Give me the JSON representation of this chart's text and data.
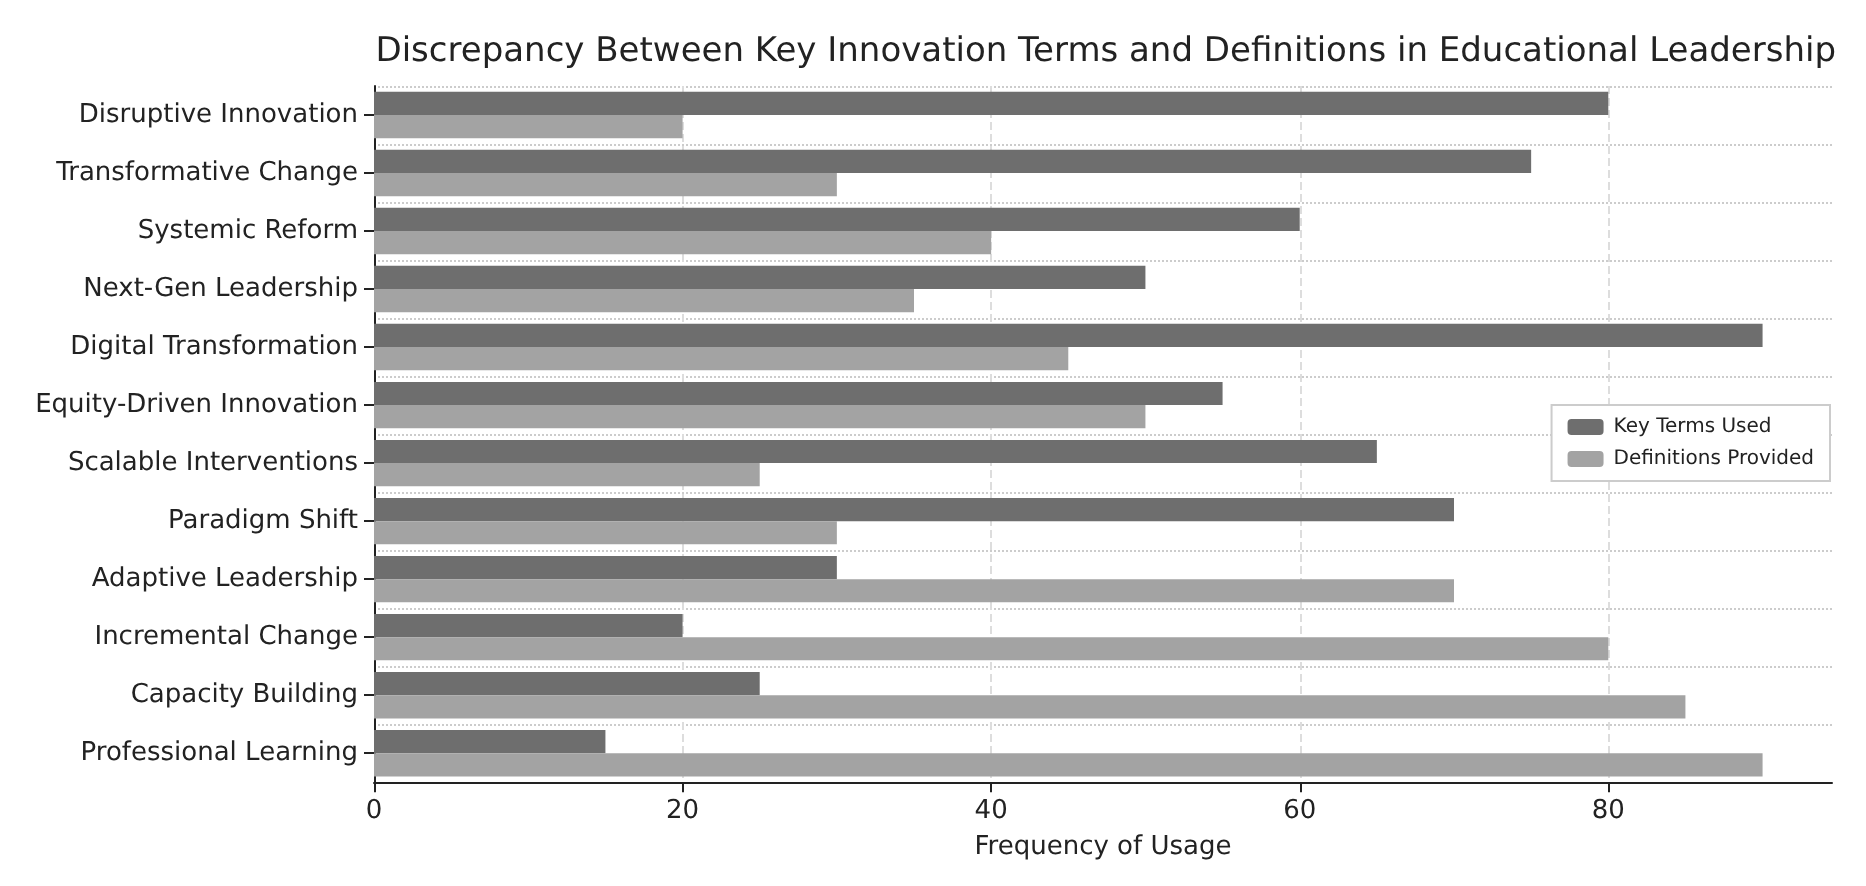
{
  "chart_data": {
    "type": "bar",
    "orientation": "horizontal",
    "title": "Discrepancy Between Key Innovation Terms and Definitions in Educational Leadership",
    "xlabel": "Frequency of Usage",
    "categories": [
      "Disruptive Innovation",
      "Transformative Change",
      "Systemic Reform",
      "Next-Gen Leadership",
      "Digital Transformation",
      "Equity-Driven Innovation",
      "Scalable Interventions",
      "Paradigm Shift",
      "Adaptive Leadership",
      "Incremental Change",
      "Capacity Building",
      "Professional Learning"
    ],
    "series": [
      {
        "name": "Key Terms Used",
        "color": "#6e6e6e",
        "values": [
          80,
          75,
          60,
          50,
          90,
          55,
          65,
          70,
          30,
          20,
          25,
          15
        ]
      },
      {
        "name": "Definitions Provided",
        "color": "#a3a3a3",
        "values": [
          20,
          30,
          40,
          35,
          45,
          50,
          25,
          30,
          70,
          80,
          85,
          90
        ]
      }
    ],
    "xlim": [
      0,
      94.5
    ],
    "xticks": [
      0,
      20,
      40,
      60,
      80
    ],
    "grid": true,
    "legend": "right"
  }
}
